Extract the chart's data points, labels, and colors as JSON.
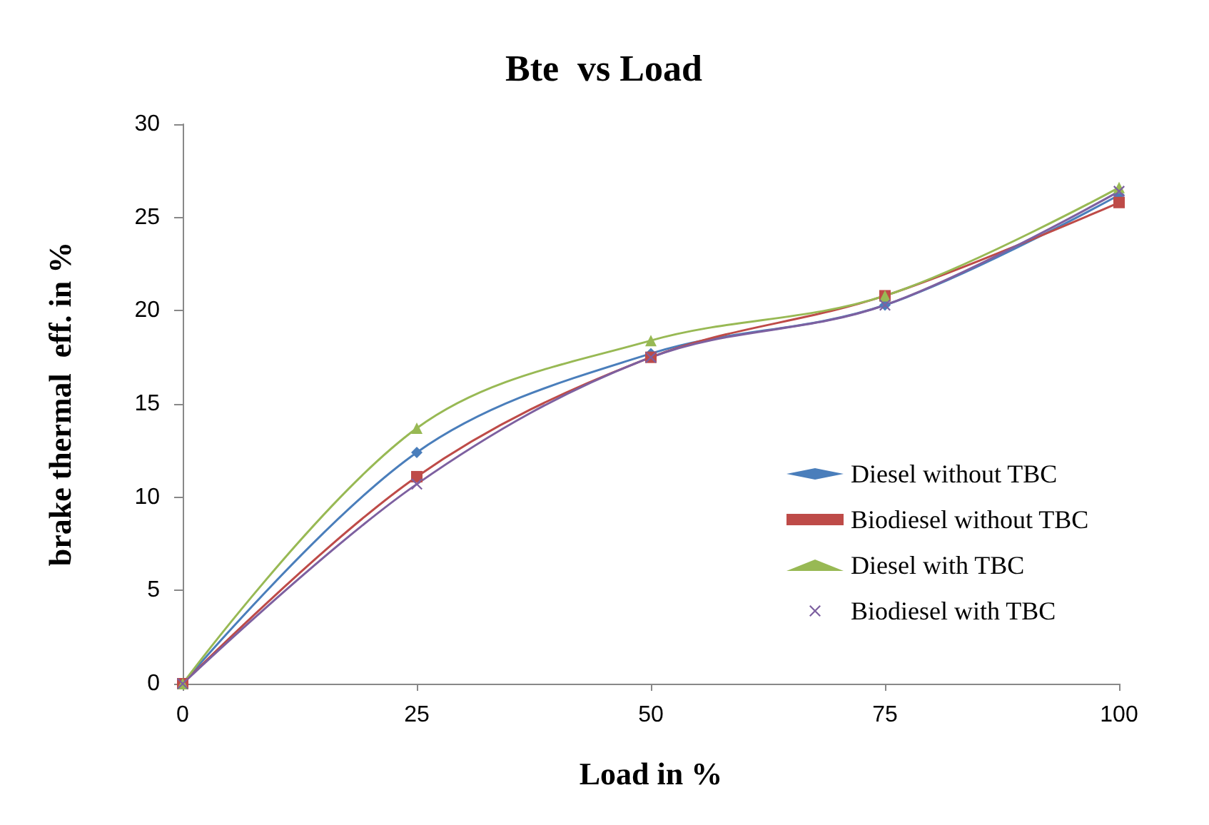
{
  "chart_data": {
    "type": "line",
    "title": "Bte  vs Load",
    "xlabel": "Load in %",
    "ylabel": "brake thermal  eff. in %",
    "x": [
      0,
      25,
      50,
      75,
      100
    ],
    "xlim": [
      0,
      100
    ],
    "xticks": [
      0,
      25,
      50,
      75,
      100
    ],
    "ylim": [
      0,
      30
    ],
    "yticks": [
      0,
      5,
      10,
      15,
      20,
      25,
      30
    ],
    "grid": false,
    "legend": "right",
    "line_style": "solid",
    "series": [
      {
        "name": "Diesel without TBC",
        "color": "#4a7ebb",
        "marker": "diamond",
        "values": [
          0,
          12.4,
          17.7,
          20.3,
          26.2
        ]
      },
      {
        "name": "Biodiesel without TBC",
        "color": "#be4b48",
        "marker": "square",
        "values": [
          0,
          11.1,
          17.5,
          20.8,
          25.8
        ]
      },
      {
        "name": "Diesel with TBC",
        "color": "#98b954",
        "marker": "triangle",
        "values": [
          0,
          13.7,
          18.4,
          20.8,
          26.6
        ]
      },
      {
        "name": "Biodiesel with TBC",
        "color": "#7d60a0",
        "marker": "cross",
        "values": [
          0,
          10.7,
          17.5,
          20.3,
          26.4
        ]
      }
    ]
  }
}
